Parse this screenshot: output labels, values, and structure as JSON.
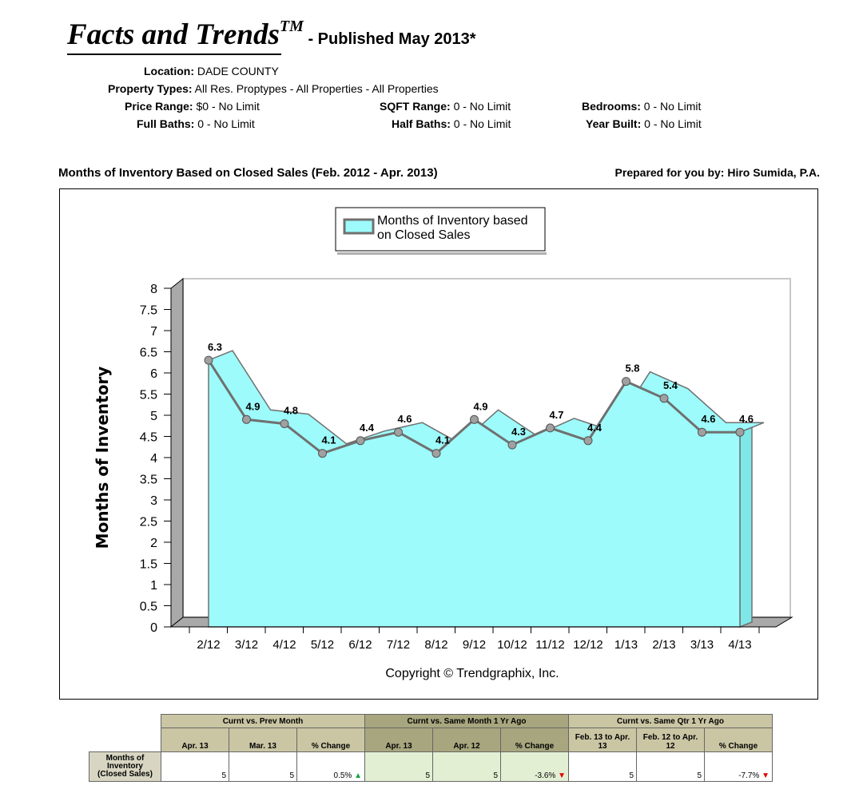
{
  "header": {
    "title": "Facts and Trends",
    "tm": "TM",
    "subtitle": " - Published May 2013*"
  },
  "criteria": {
    "location_label": "Location:",
    "location": "DADE COUNTY",
    "ptype_label": "Property Types:",
    "ptype": "All Res. Proptypes - All Properties - All Properties",
    "price_label": "Price Range:",
    "price": "$0 - No Limit",
    "sqft_label": "SQFT Range:",
    "sqft": "0 - No Limit",
    "bed_label": "Bedrooms:",
    "bed": "0 - No Limit",
    "fullbath_label": "Full Baths:",
    "fullbath": "0 - No Limit",
    "halfbath_label": "Half Baths:",
    "halfbath": "0 - No Limit",
    "year_label": "Year Built:",
    "year": "0 - No Limit"
  },
  "chart_title": "Months of Inventory Based on Closed Sales (Feb. 2012 - Apr. 2013)",
  "prepared_by": "Prepared for you by: Hiro Sumida, P.A.",
  "chart_data": {
    "type": "area",
    "categories": [
      "2/12",
      "3/12",
      "4/12",
      "5/12",
      "6/12",
      "7/12",
      "8/12",
      "9/12",
      "10/12",
      "11/12",
      "12/12",
      "1/13",
      "2/13",
      "3/13",
      "4/13"
    ],
    "series": [
      {
        "name": "Months of Inventory based on Closed Sales",
        "values": [
          6.3,
          4.9,
          4.8,
          4.1,
          4.4,
          4.6,
          4.1,
          4.9,
          4.3,
          4.7,
          4.4,
          5.8,
          5.4,
          4.6,
          4.6
        ]
      }
    ],
    "legend_lines": [
      "Months of Inventory based",
      "on Closed Sales"
    ],
    "ylabel": "Months of Inventory",
    "xlabel": "",
    "ylim": [
      0,
      8
    ],
    "yticks": [
      "0",
      "0.5",
      "1",
      "1.5",
      "2",
      "2.5",
      "3",
      "3.5",
      "4",
      "4.5",
      "5",
      "5.5",
      "6",
      "6.5",
      "7",
      "7.5",
      "8"
    ],
    "legend_position": "top-center",
    "copyright": "Copyright © Trendgraphix, Inc.",
    "fill_color": "#9dfbfb",
    "line_color": "#707070"
  },
  "table": {
    "group1": "Curnt vs. Prev Month",
    "group2": "Curnt vs. Same Month 1 Yr Ago",
    "group3": "Curnt vs. Same Qtr 1 Yr Ago",
    "cols": [
      "Apr. 13",
      "Mar. 13",
      "% Change",
      "Apr. 13",
      "Apr. 12",
      "% Change",
      "Feb. 13 to Apr. 13",
      "Feb. 12 to Apr. 12",
      "% Change"
    ],
    "row_label": "Months of Inventory (Closed Sales)",
    "values": [
      "5",
      "5",
      "0.5%",
      "5",
      "5",
      "-3.6%",
      "5",
      "5",
      "-7.7%"
    ],
    "up_color": "#1aa34a",
    "down_color": "#e00000"
  }
}
